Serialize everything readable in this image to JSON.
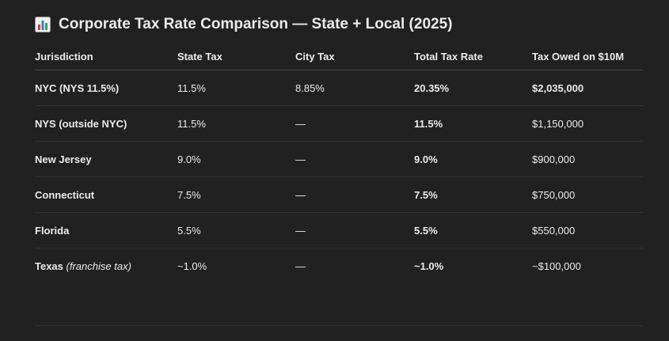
{
  "title": "Corporate Tax Rate Comparison — State + Local (2025)",
  "title_icon": "bar-chart-emoji-icon",
  "table": {
    "headers": [
      "Jurisdiction",
      "State Tax",
      "City Tax",
      "Total Tax Rate",
      "Tax Owed on $10M"
    ],
    "rows": [
      {
        "jurisdiction": "NYC (NYS 11.5%)",
        "note": "",
        "state_tax": "11.5%",
        "city_tax": "8.85%",
        "total_rate": "20.35%",
        "tax_owed": "$2,035,000"
      },
      {
        "jurisdiction": "NYS (outside NYC)",
        "note": "",
        "state_tax": "11.5%",
        "city_tax": "—",
        "total_rate": "11.5%",
        "tax_owed": "$1,150,000"
      },
      {
        "jurisdiction": "New Jersey",
        "note": "",
        "state_tax": "9.0%",
        "city_tax": "—",
        "total_rate": "9.0%",
        "tax_owed": "$900,000"
      },
      {
        "jurisdiction": "Connecticut",
        "note": "",
        "state_tax": "7.5%",
        "city_tax": "—",
        "total_rate": "7.5%",
        "tax_owed": "$750,000"
      },
      {
        "jurisdiction": "Florida",
        "note": "",
        "state_tax": "5.5%",
        "city_tax": "—",
        "total_rate": "5.5%",
        "tax_owed": "$550,000"
      },
      {
        "jurisdiction": "Texas",
        "note": "(franchise tax)",
        "state_tax": "~1.0%",
        "city_tax": "—",
        "total_rate": "~1.0%",
        "tax_owed": "~$100,000"
      }
    ]
  },
  "colors": {
    "background": "#212121",
    "text": "#ececec",
    "divider": "#333333"
  }
}
